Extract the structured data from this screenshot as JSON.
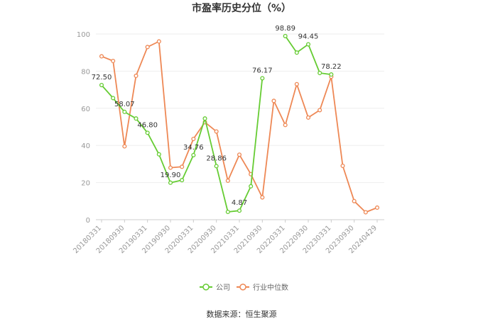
{
  "chart_data": {
    "type": "line",
    "title": "市盈率历史分位（%）",
    "source": "数据来源：恒生聚源",
    "ylim": [
      0,
      100
    ],
    "yticks": [
      0,
      20,
      40,
      60,
      80,
      100
    ],
    "grid": true,
    "legend_position": "bottom",
    "x_tick_labels": [
      "20180331",
      "20180930",
      "20190331",
      "20190930",
      "20200331",
      "20200930",
      "20210331",
      "20210930",
      "20220331",
      "20220930",
      "20230331",
      "20230930",
      "20240429"
    ],
    "series": [
      {
        "name": "公司",
        "color": "#66cc33",
        "values": [
          72.5,
          65.5,
          58.07,
          54.5,
          46.8,
          35.2,
          19.9,
          21.3,
          34.76,
          54.5,
          28.86,
          4.2,
          4.87,
          18.0,
          76.17,
          null,
          98.89,
          90.0,
          94.45,
          79.0,
          78.22,
          null,
          null,
          null,
          null
        ],
        "labels": {
          "0": "72.50",
          "2": "58.07",
          "4": "46.80",
          "6": "19.90",
          "8": "34.76",
          "10": "28.86",
          "12": "4.87",
          "14": "76.17",
          "16": "98.89",
          "18": "94.45",
          "20": "78.22"
        }
      },
      {
        "name": "行业中位数",
        "color": "#ee8855",
        "values": [
          88.0,
          85.5,
          39.5,
          77.5,
          93.0,
          96.0,
          28.0,
          28.5,
          43.5,
          52.5,
          47.5,
          21.0,
          35.0,
          24.5,
          12.0,
          64.0,
          51.0,
          73.0,
          55.0,
          59.0,
          77.0,
          29.0,
          10.0,
          4.0,
          6.5
        ]
      }
    ]
  }
}
